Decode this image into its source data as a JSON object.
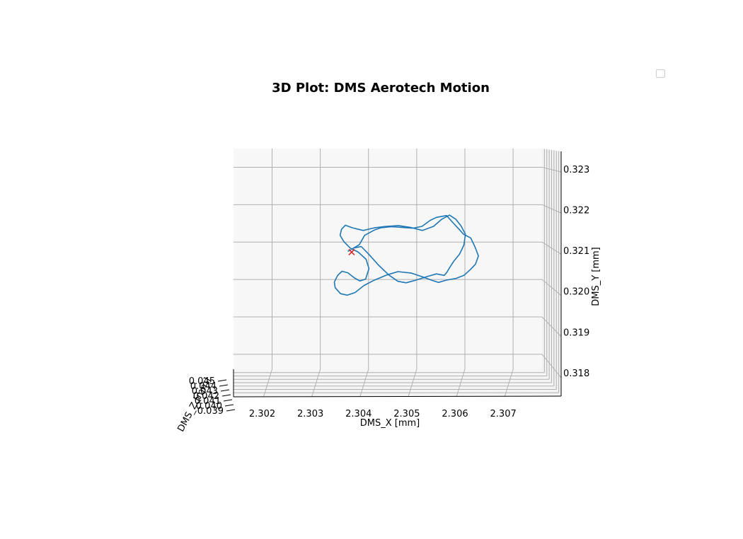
{
  "chart_data": {
    "type": "line",
    "projection": "3d",
    "title": "3D Plot: DMS Aerotech Motion",
    "xlabel": "DMS_X [mm]",
    "ylabel": "DMS_Y [mm]",
    "zlabel": "DMS_Z [mm]",
    "x_ticks": [
      "2.302",
      "2.303",
      "2.304",
      "2.305",
      "2.306",
      "2.307"
    ],
    "y_ticks": [
      "0.318",
      "0.319",
      "0.320",
      "0.321",
      "0.322",
      "0.323"
    ],
    "z_ticks": [
      "0.039",
      "0.040",
      "0.041",
      "0.042",
      "0.043",
      "0.044",
      "0.045"
    ],
    "xlim": [
      2.3012,
      2.3076
    ],
    "ylim": [
      0.3176,
      0.3235
    ],
    "grid": true,
    "legend": {
      "placement": "top-right",
      "entries": []
    },
    "series": [
      {
        "color": "#1f77b4",
        "marker": "line",
        "x": [
          2.30357,
          2.30381,
          2.30392,
          2.30412,
          2.30425,
          2.30448,
          2.30471,
          2.30492,
          2.30511,
          2.30528,
          2.30541,
          2.30562,
          2.30573,
          2.30588,
          2.30597,
          2.30612,
          2.30621,
          2.30628,
          2.30622,
          2.30611,
          2.30598,
          2.30582,
          2.30561,
          2.30545,
          2.30531,
          2.30512,
          2.30489,
          2.30461,
          2.30438,
          2.30412,
          2.30391,
          2.30372,
          2.30356,
          2.30342,
          2.30331,
          2.30329,
          2.30336,
          2.30345,
          2.30357,
          2.30371,
          2.30382,
          2.30394,
          2.30401,
          2.30395,
          2.30379,
          2.30362,
          2.30349,
          2.30341,
          2.30344,
          2.30352,
          2.30367,
          2.30389,
          2.30412,
          2.30437,
          2.30462,
          2.30488,
          2.30512,
          2.30535,
          2.30552,
          2.30568,
          2.30581,
          2.30592,
          2.30601,
          2.30598,
          2.30589,
          2.30577,
          2.30568,
          2.30562,
          2.30557,
          2.30541,
          2.30522,
          2.30498,
          2.30478,
          2.30461,
          2.30442,
          2.30421,
          2.30401,
          2.30385,
          2.30369,
          2.30357
        ],
        "y": [
          0.32075,
          0.32093,
          0.32118,
          0.32132,
          0.32138,
          0.32141,
          0.32139,
          0.32137,
          0.32142,
          0.32158,
          0.32166,
          0.32171,
          0.32155,
          0.32134,
          0.32121,
          0.32111,
          0.32087,
          0.32063,
          0.32041,
          0.32026,
          0.32011,
          0.32003,
          0.31998,
          0.31992,
          0.31998,
          0.32007,
          0.32017,
          0.32021,
          0.32012,
          0.31998,
          0.31984,
          0.31965,
          0.31958,
          0.31962,
          0.31978,
          0.31993,
          0.32011,
          0.32022,
          0.32018,
          0.32004,
          0.31996,
          0.32001,
          0.32029,
          0.32054,
          0.32073,
          0.32084,
          0.32101,
          0.32118,
          0.32134,
          0.32145,
          0.32138,
          0.32131,
          0.32138,
          0.32142,
          0.32144,
          0.32139,
          0.32131,
          0.32142,
          0.32161,
          0.32172,
          0.32161,
          0.32143,
          0.32121,
          0.32092,
          0.32068,
          0.32049,
          0.32031,
          0.32018,
          0.32011,
          0.32015,
          0.32008,
          0.31998,
          0.31991,
          0.31995,
          0.32012,
          0.32038,
          0.32067,
          0.32088,
          0.32084,
          0.32075
        ]
      }
    ],
    "markers": [
      {
        "x": 2.30365,
        "y": 0.32073,
        "symbol": "x",
        "color": "#d62728"
      }
    ]
  }
}
